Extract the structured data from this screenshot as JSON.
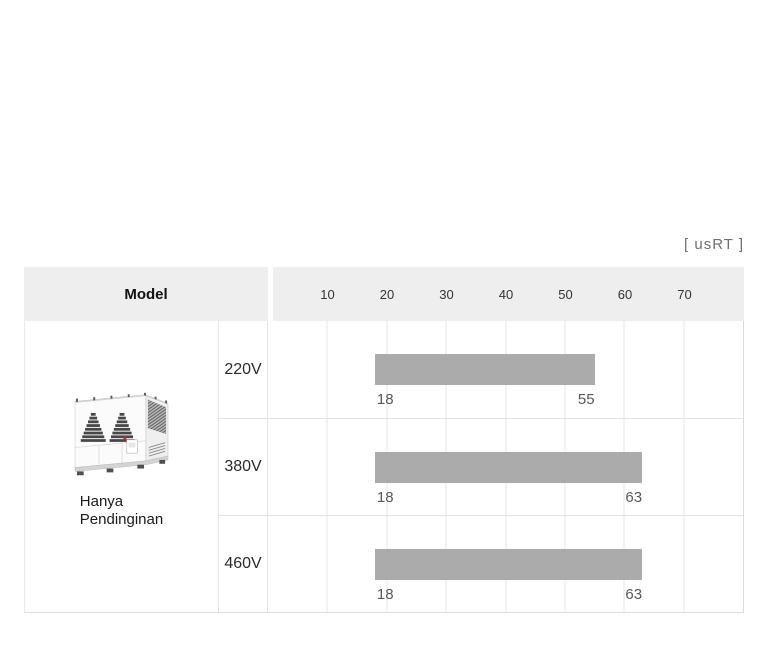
{
  "table": {
    "model_header": "Model",
    "model_name_lines": [
      "Hanya",
      "Pendinginan"
    ]
  },
  "chart_data": {
    "type": "bar",
    "subtype": "horizontal-capacity-range",
    "unit": "usRT",
    "unit_label": "[ usRT ]",
    "axis": {
      "min": 0,
      "max": 80,
      "ticks": [
        10,
        20,
        30,
        40,
        50,
        60,
        70
      ]
    },
    "grid": true,
    "legend": "none",
    "bar_color": "#ababab",
    "model": "Hanya Pendinginan",
    "categories": [
      "220V",
      "380V",
      "460V"
    ],
    "rows": [
      {
        "label": "220V",
        "start": 18,
        "end": 55
      },
      {
        "label": "380V",
        "start": 18,
        "end": 63
      },
      {
        "label": "460V",
        "start": 18,
        "end": 63
      }
    ]
  },
  "colors": {
    "header_bg": "#eeeeee",
    "bar": "#ababab",
    "gridline": "#e5e5e5",
    "border": "#e0e0e0",
    "bar_label_text": "#585858",
    "unit_text": "#6e6e6e"
  }
}
